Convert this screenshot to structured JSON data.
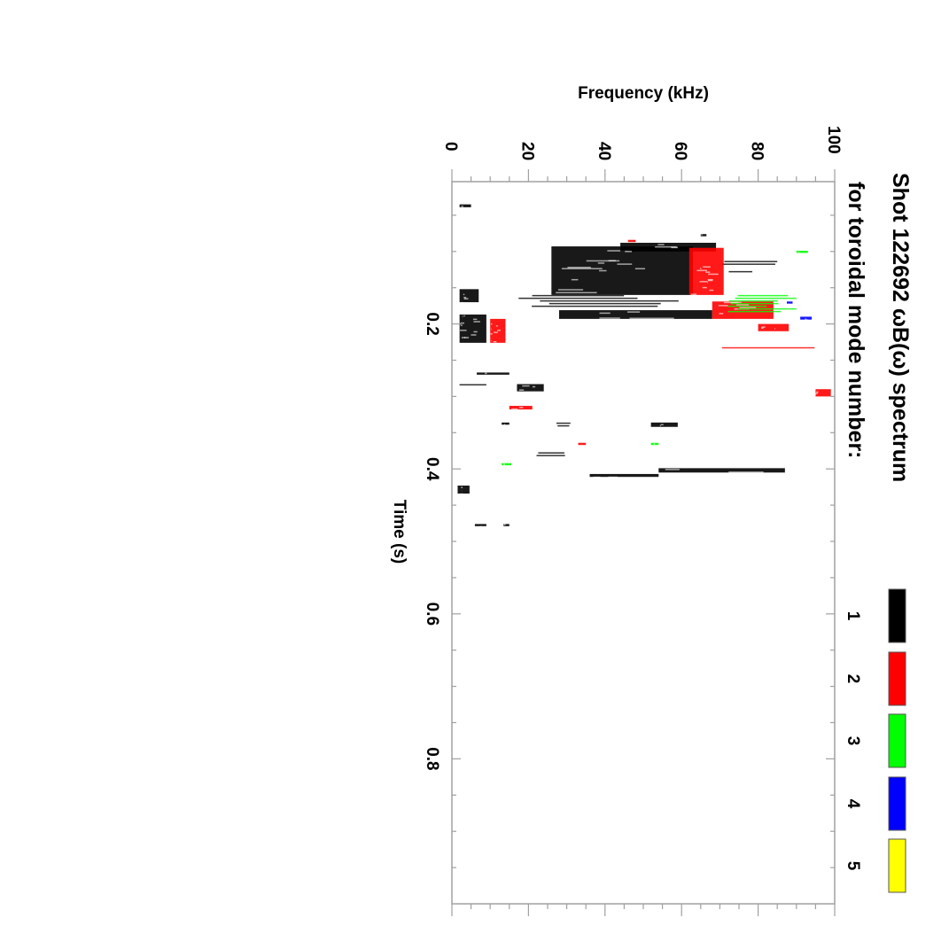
{
  "chart_data": {
    "type": "heatmap",
    "title_line1": "Shot 122692 ωB(ω) spectrum",
    "title_line2": "for toroidal mode number:",
    "xlabel": "Time (s)",
    "ylabel": "Frequency (kHz)",
    "xlim": [
      0,
      1.0
    ],
    "ylim": [
      0,
      100
    ],
    "orientation": "rotated-90",
    "x_ticks": [
      "0.2",
      "0.4",
      "0.6",
      "0.8"
    ],
    "x_tick_values": [
      0.2,
      0.4,
      0.6,
      0.8
    ],
    "y_ticks": [
      "0",
      "20",
      "40",
      "60",
      "80",
      "100"
    ],
    "y_tick_values": [
      0,
      20,
      40,
      60,
      80,
      100
    ],
    "legend": [
      {
        "label": "1",
        "color": "#000000"
      },
      {
        "label": "2",
        "color": "#ff0000"
      },
      {
        "label": "3",
        "color": "#00ff00"
      },
      {
        "label": "4",
        "color": "#0000ff"
      },
      {
        "label": "5",
        "color": "#ffff00"
      }
    ],
    "blobs": [
      {
        "t": [
          0.035,
          0.039
        ],
        "f": [
          2,
          5
        ],
        "mode": 1
      },
      {
        "t": [
          0.093,
          0.16
        ],
        "f": [
          26,
          63
        ],
        "mode": 1
      },
      {
        "t": [
          0.088,
          0.1
        ],
        "f": [
          44,
          69
        ],
        "mode": 1
      },
      {
        "t": [
          0.16,
          0.177
        ],
        "f": [
          17,
          61
        ],
        "mode": 1,
        "sparse": true
      },
      {
        "t": [
          0.181,
          0.193
        ],
        "f": [
          28,
          68
        ],
        "mode": 1
      },
      {
        "t": [
          0.113,
          0.117
        ],
        "f": [
          68,
          85
        ],
        "mode": 1,
        "sparse": true
      },
      {
        "t": [
          0.127,
          0.13
        ],
        "f": [
          71,
          83
        ],
        "mode": 1,
        "sparse": true
      },
      {
        "t": [
          0.152,
          0.17
        ],
        "f": [
          2,
          7
        ],
        "mode": 1
      },
      {
        "t": [
          0.187,
          0.226
        ],
        "f": [
          2,
          9
        ],
        "mode": 1
      },
      {
        "t": [
          0.076,
          0.079
        ],
        "f": [
          65,
          66.5
        ],
        "mode": 1
      },
      {
        "t": [
          0.193,
          0.226
        ],
        "f": [
          10,
          14
        ],
        "mode": 2
      },
      {
        "t": [
          0.095,
          0.16
        ],
        "f": [
          62,
          71
        ],
        "mode": 2
      },
      {
        "t": [
          0.169,
          0.193
        ],
        "f": [
          68,
          84
        ],
        "mode": 2
      },
      {
        "t": [
          0.2,
          0.21
        ],
        "f": [
          80,
          88
        ],
        "mode": 2
      },
      {
        "t": [
          0.232,
          0.235
        ],
        "f": [
          68,
          100
        ],
        "mode": 2,
        "sparse": true
      },
      {
        "t": [
          0.084,
          0.087
        ],
        "f": [
          46,
          48
        ],
        "mode": 2
      },
      {
        "t": [
          0.16,
          0.185
        ],
        "f": [
          72,
          90
        ],
        "mode": 3,
        "sparse": true
      },
      {
        "t": [
          0.099,
          0.102
        ],
        "f": [
          90,
          93
        ],
        "mode": 3
      },
      {
        "t": [
          0.19,
          0.194
        ],
        "f": [
          91,
          94
        ],
        "mode": 4
      },
      {
        "t": [
          0.169,
          0.172
        ],
        "f": [
          87.5,
          89
        ],
        "mode": 4
      },
      {
        "t": [
          0.267,
          0.27
        ],
        "f": [
          6.5,
          15
        ],
        "mode": 1
      },
      {
        "t": [
          0.283,
          0.293
        ],
        "f": [
          17,
          24
        ],
        "mode": 1
      },
      {
        "t": [
          0.283,
          0.285
        ],
        "f": [
          1,
          9
        ],
        "mode": 1,
        "sparse": true
      },
      {
        "t": [
          0.313,
          0.318
        ],
        "f": [
          15,
          21
        ],
        "mode": 2
      },
      {
        "t": [
          0.336,
          0.342
        ],
        "f": [
          52,
          59
        ],
        "mode": 1
      },
      {
        "t": [
          0.336,
          0.34
        ],
        "f": [
          27,
          31
        ],
        "mode": 1,
        "sparse": true
      },
      {
        "t": [
          0.336,
          0.339
        ],
        "f": [
          13,
          15
        ],
        "mode": 1
      },
      {
        "t": [
          0.399,
          0.405
        ],
        "f": [
          54,
          87
        ],
        "mode": 1
      },
      {
        "t": [
          0.407,
          0.411
        ],
        "f": [
          36,
          54
        ],
        "mode": 1
      },
      {
        "t": [
          0.377,
          0.383
        ],
        "f": [
          22,
          33
        ],
        "mode": 1,
        "sparse": true
      },
      {
        "t": [
          0.423,
          0.434
        ],
        "f": [
          1.5,
          4.6
        ],
        "mode": 1
      },
      {
        "t": [
          0.392,
          0.395
        ],
        "f": [
          13,
          15.5
        ],
        "mode": 3
      },
      {
        "t": [
          0.364,
          0.367
        ],
        "f": [
          52,
          54
        ],
        "mode": 3
      },
      {
        "t": [
          0.364,
          0.367
        ],
        "f": [
          33,
          35
        ],
        "mode": 2
      },
      {
        "t": [
          0.29,
          0.3
        ],
        "f": [
          95,
          99
        ],
        "mode": 2
      },
      {
        "t": [
          0.476,
          0.479
        ],
        "f": [
          6,
          9
        ],
        "mode": 1
      },
      {
        "t": [
          0.476,
          0.479
        ],
        "f": [
          13.5,
          15
        ],
        "mode": 1
      }
    ]
  }
}
